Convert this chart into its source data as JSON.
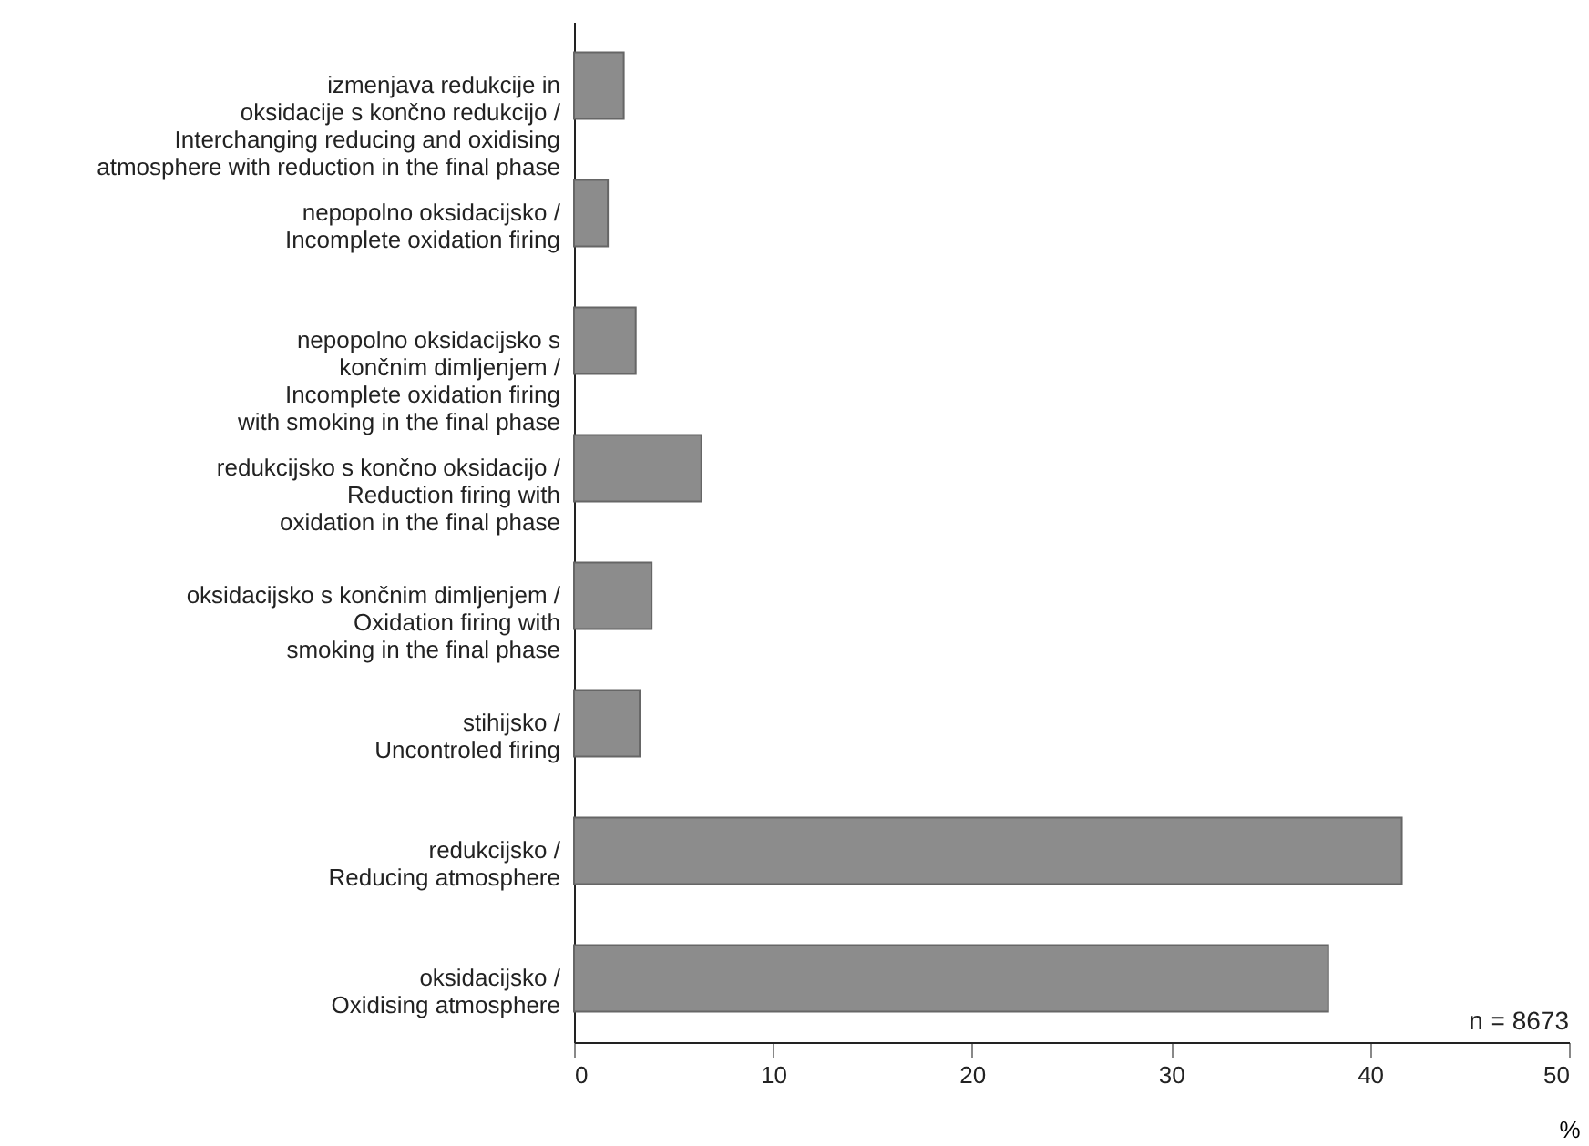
{
  "chart_data": {
    "type": "bar",
    "orientation": "horizontal",
    "categories": [
      "izmenjava redukcije in\noksidacije s končno redukcijo /\nInterchanging reducing and oxidising\natmosphere with reduction in the final phase",
      "nepopolno oksidacijsko /\nIncomplete oxidation firing",
      "nepopolno oksidacijsko s\nkončnim dimljenjem /\nIncomplete oxidation firing\nwith smoking in the final phase",
      "redukcijsko s končno oksidacijo /\nReduction firing with\noxidation in the final phase",
      "oksidacijsko  s končnim dimljenjem /\nOxidation firing with\nsmoking in the final phase",
      "stihijsko /\nUncontroled firing",
      "redukcijsko /\nReducing atmosphere",
      "oksidacijsko /\nOxidising atmosphere"
    ],
    "values": [
      2.5,
      1.7,
      3.1,
      6.4,
      3.9,
      3.3,
      41.6,
      37.9
    ],
    "color": "#8c8c8c",
    "xlim": [
      0,
      50
    ],
    "xticks": [
      0,
      10,
      20,
      30,
      40,
      50
    ],
    "xlabel": "%",
    "annotations": [
      "n = 8673"
    ],
    "grid": false
  }
}
